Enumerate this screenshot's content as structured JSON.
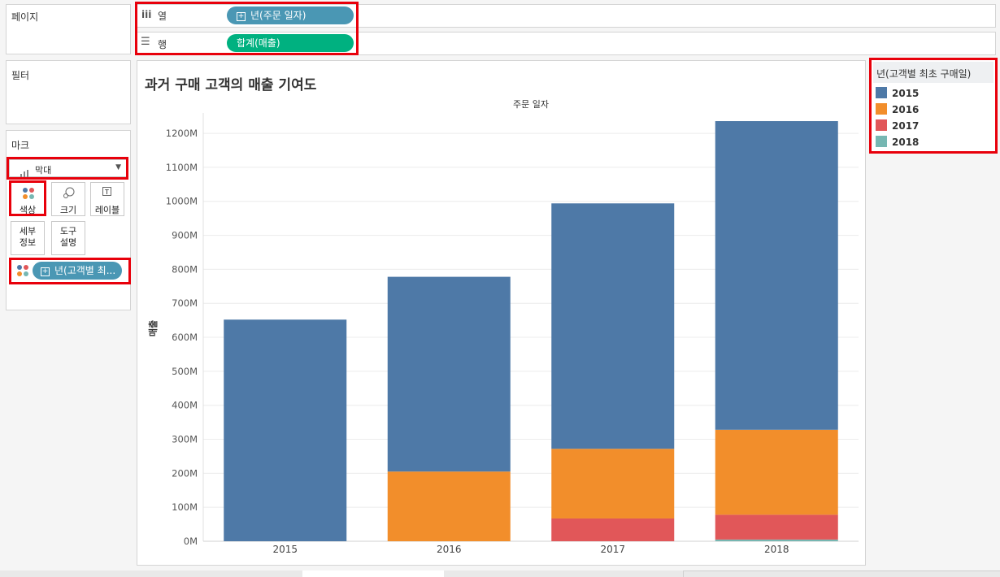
{
  "shelves": {
    "pages_label": "페이지",
    "columns_label": "열",
    "rows_label": "행",
    "columns_pill": "년(주문 일자)",
    "rows_pill": "합계(매출)"
  },
  "filters": {
    "label": "필터"
  },
  "marks": {
    "label": "마크",
    "type_value": "막대",
    "cards": {
      "color": "색상",
      "size": "크기",
      "label": "레이블",
      "detail": "세부\n정보",
      "tooltip": "도구\n설명"
    },
    "color_pill": "년(고객별 최..."
  },
  "colors": {
    "c2015": "#4e79a7",
    "c2016": "#f28e2b",
    "c2017": "#e15759",
    "c2018": "#76b7b2",
    "pill_blue": "#4a97b4",
    "pill_green": "#00b180",
    "highlight": "#e8000b"
  },
  "legend": {
    "title": "년(고객별 최초 구매일)",
    "items": [
      "2015",
      "2016",
      "2017",
      "2018"
    ]
  },
  "chart_data": {
    "type": "bar",
    "stacked": true,
    "title": "과거 구매 고객의 매출 기여도",
    "header": "주문 일자",
    "ylabel": "매출",
    "xlabel": "",
    "categories": [
      "2015",
      "2016",
      "2017",
      "2018"
    ],
    "series": [
      {
        "name": "2015",
        "values": [
          652,
          573,
          722,
          908
        ]
      },
      {
        "name": "2016",
        "values": [
          0,
          205,
          205,
          250
        ]
      },
      {
        "name": "2017",
        "values": [
          0,
          0,
          67,
          73
        ]
      },
      {
        "name": "2018",
        "values": [
          0,
          0,
          0,
          5
        ]
      }
    ],
    "ylim": [
      0,
      1260
    ],
    "yticks": [
      0,
      100,
      200,
      300,
      400,
      500,
      600,
      700,
      800,
      900,
      1000,
      1100,
      1200
    ],
    "ytick_labels": [
      "0M",
      "100M",
      "200M",
      "300M",
      "400M",
      "500M",
      "600M",
      "700M",
      "800M",
      "900M",
      "1000M",
      "1100M",
      "1200M"
    ],
    "grid": true,
    "legend": "right"
  }
}
